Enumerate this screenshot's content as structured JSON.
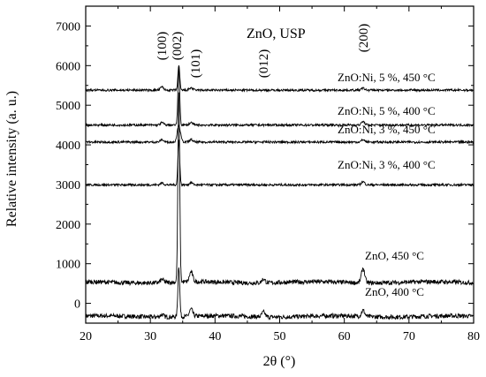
{
  "chart_data": {
    "type": "line",
    "title": "ZnO, USP",
    "xlabel": "2θ (°)",
    "ylabel": "Relative intensity (a. u.)",
    "xlim": [
      20,
      80
    ],
    "ylim": [
      -500,
      7500
    ],
    "xticks": [
      20,
      30,
      40,
      50,
      60,
      70,
      80
    ],
    "yticks": [
      0,
      1000,
      2000,
      3000,
      4000,
      5000,
      6000,
      7000
    ],
    "grid": false,
    "legend": "inline labels",
    "peaks": [
      {
        "label": "(100)",
        "x": 31.8
      },
      {
        "label": "(002)",
        "x": 34.4
      },
      {
        "label": "(101)",
        "x": 36.3
      },
      {
        "label": "(012)",
        "x": 47.5
      },
      {
        "label": "(200)",
        "x": 62.9
      }
    ],
    "series": [
      {
        "name": "ZnO, 400 °C",
        "baseline": -330,
        "peaks": [
          [
            31.8,
            60
          ],
          [
            34.4,
            1280
          ],
          [
            36.3,
            180
          ],
          [
            47.5,
            120
          ],
          [
            62.9,
            150
          ]
        ]
      },
      {
        "name": "ZnO, 450 °C",
        "baseline": 530,
        "peaks": [
          [
            31.8,
            80
          ],
          [
            34.4,
            4740
          ],
          [
            36.3,
            250
          ],
          [
            47.5,
            100
          ],
          [
            62.9,
            370
          ]
        ]
      },
      {
        "name": "ZnO:Ni, 3 %, 400 °C",
        "baseline": 2990,
        "peaks": [
          [
            31.8,
            50
          ],
          [
            34.4,
            1130
          ],
          [
            36.3,
            60
          ],
          [
            62.9,
            80
          ]
        ]
      },
      {
        "name": "ZnO:Ni, 3 %, 450 °C",
        "baseline": 4070,
        "peaks": [
          [
            31.8,
            60
          ],
          [
            34.4,
            420
          ],
          [
            36.3,
            60
          ],
          [
            62.9,
            60
          ]
        ]
      },
      {
        "name": "ZnO:Ni, 5 %, 400 °C",
        "baseline": 4500,
        "peaks": [
          [
            31.8,
            60
          ],
          [
            34.4,
            1440
          ],
          [
            36.3,
            60
          ],
          [
            62.9,
            90
          ]
        ]
      },
      {
        "name": "ZnO:Ni, 5 %, 450 °C",
        "baseline": 5380,
        "peaks": [
          [
            31.8,
            80
          ],
          [
            34.4,
            620
          ],
          [
            36.3,
            60
          ],
          [
            62.9,
            50
          ]
        ]
      }
    ]
  }
}
